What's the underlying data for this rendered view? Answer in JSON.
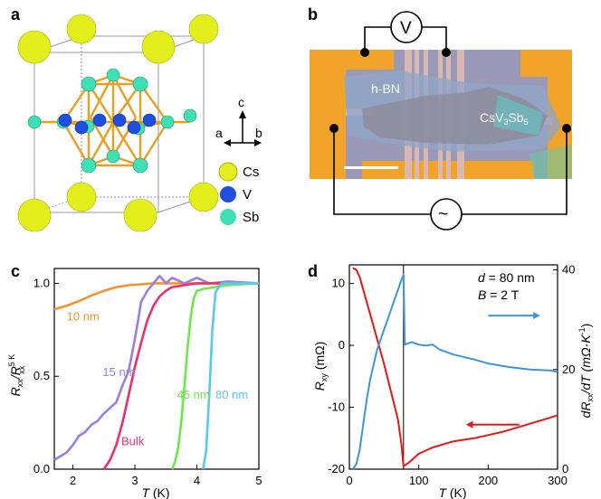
{
  "panels": {
    "a": {
      "letter": "a",
      "axes": {
        "c": "c",
        "a": "a",
        "b": "b"
      },
      "legend": [
        {
          "label": "Cs",
          "color": "#e2ef1c"
        },
        {
          "label": "V",
          "color": "#1f4fe0"
        },
        {
          "label": "Sb",
          "color": "#3fe0b3"
        }
      ],
      "bond_color": "#e8a020"
    },
    "b": {
      "letter": "b",
      "voltmeter": "V",
      "source": "~",
      "hbn_label": "h-BN",
      "flake_label": {
        "base": "CsV",
        "sub1": "3",
        "mid": "Sb",
        "sub2": "5"
      }
    },
    "c": {
      "letter": "c",
      "ylabel": {
        "R": "R",
        "xx": "xx",
        "slash": "/R",
        "sup": "5 K",
        "sub": "xx"
      },
      "xlabel": {
        "T": "T",
        "unit": " (K)"
      },
      "xticks": [
        "2",
        "3",
        "4",
        "5"
      ],
      "yticks": [
        "0.0",
        "0.5",
        "1.0"
      ],
      "labels": [
        "10 nm",
        "15 nm",
        "Bulk",
        "45 nm",
        "80 nm"
      ]
    },
    "d": {
      "letter": "d",
      "info": {
        "d_var": "d",
        "d_val": " = 80 nm",
        "b_var": "B",
        "b_val": " = 2 T"
      },
      "ylabel_left": {
        "R": "R",
        "sub": "xy",
        "unit": " (mΩ)"
      },
      "ylabel_right": {
        "pre": "dR",
        "sub": "xx",
        "post": "/dT (mΩ·K",
        "sup": "-1",
        "close": ")"
      },
      "xlabel": {
        "T": "T",
        "unit": " (K)"
      },
      "xticks": [
        "0",
        "100",
        "200",
        "300"
      ],
      "yticks_left": [
        "-20",
        "-10",
        "0",
        "10"
      ],
      "yticks_right": [
        "0",
        "20",
        "40"
      ]
    }
  },
  "chart_data": [
    {
      "type": "line",
      "panel": "c",
      "xlabel": "T (K)",
      "ylabel": "Rxx/Rxx(5 K)",
      "xlim": [
        1.7,
        5.0
      ],
      "ylim": [
        0.0,
        1.08
      ],
      "series": [
        {
          "name": "10 nm",
          "color": "#f5922a",
          "x": [
            1.7,
            1.9,
            2.1,
            2.3,
            2.5,
            2.7,
            2.9,
            3.1,
            3.3,
            3.6,
            4.0,
            4.5,
            5.0
          ],
          "y": [
            0.86,
            0.88,
            0.905,
            0.935,
            0.96,
            0.98,
            0.99,
            0.995,
            1.0,
            1.0,
            1.0,
            1.0,
            1.0
          ]
        },
        {
          "name": "15 nm",
          "color": "#9b7fe0",
          "x": [
            1.7,
            1.8,
            1.9,
            2.0,
            2.1,
            2.2,
            2.3,
            2.4,
            2.5,
            2.6,
            2.7,
            2.8,
            2.9,
            3.0,
            3.05,
            3.1,
            3.2,
            3.3,
            3.4,
            3.5,
            3.6,
            3.8,
            4.0,
            4.2,
            4.5,
            5.0
          ],
          "y": [
            0.05,
            0.07,
            0.09,
            0.13,
            0.18,
            0.2,
            0.24,
            0.26,
            0.3,
            0.33,
            0.36,
            0.45,
            0.53,
            0.7,
            0.8,
            0.9,
            0.96,
            1.0,
            1.04,
            1.0,
            1.03,
            1.0,
            1.03,
            1.0,
            1.01,
            1.0
          ]
        },
        {
          "name": "Bulk",
          "color": "#ee2f6f",
          "x": [
            2.5,
            2.6,
            2.7,
            2.8,
            2.9,
            3.0,
            3.1,
            3.2,
            3.3,
            3.4,
            3.5,
            3.6,
            3.8,
            4.0,
            5.0
          ],
          "y": [
            0.0,
            0.05,
            0.13,
            0.25,
            0.4,
            0.55,
            0.68,
            0.8,
            0.88,
            0.93,
            0.96,
            0.98,
            0.99,
            1.0,
            1.0
          ]
        },
        {
          "name": "45 nm",
          "color": "#6ee84a",
          "x": [
            3.6,
            3.65,
            3.7,
            3.75,
            3.8,
            3.85,
            3.9,
            3.95,
            4.0,
            4.1,
            4.5,
            5.0
          ],
          "y": [
            0.0,
            0.04,
            0.12,
            0.26,
            0.45,
            0.65,
            0.82,
            0.92,
            0.96,
            0.97,
            0.99,
            1.0
          ]
        },
        {
          "name": "80 nm",
          "color": "#5bc8f0",
          "x": [
            4.1,
            4.15,
            4.2,
            4.25,
            4.3,
            4.35,
            4.4,
            4.6,
            5.0
          ],
          "y": [
            0.0,
            0.1,
            0.4,
            0.75,
            0.95,
            0.98,
            1.0,
            1.0,
            1.0
          ]
        }
      ]
    },
    {
      "type": "line",
      "panel": "d",
      "xlabel": "T (K)",
      "ylabel": "Rxy (mΩ)",
      "ylabel_right": "dRxx/dT (mΩ·K^-1)",
      "xlim": [
        0,
        300
      ],
      "ylim": [
        -20,
        13
      ],
      "ylim_right": [
        0,
        41
      ],
      "annotation_line_x": 78,
      "series": [
        {
          "name": "Rxy",
          "color": "#e81818",
          "axis": "left",
          "x": [
            5,
            10,
            15,
            20,
            30,
            40,
            50,
            60,
            70,
            75,
            78,
            85,
            100,
            120,
            150,
            180,
            200,
            220,
            250,
            280,
            300
          ],
          "y": [
            12.5,
            12.2,
            11,
            9,
            5,
            1,
            -3,
            -7.5,
            -12,
            -16,
            -19.5,
            -19,
            -17.5,
            -16.5,
            -15.5,
            -15,
            -14.5,
            -14,
            -13,
            -12,
            -11.3
          ]
        },
        {
          "name": "dRxx/dT",
          "color": "#3d96dd",
          "axis": "right",
          "x": [
            5,
            10,
            15,
            20,
            25,
            30,
            40,
            50,
            60,
            70,
            75,
            78,
            80,
            90,
            100,
            110,
            120,
            130,
            150,
            180,
            200,
            230,
            260,
            290,
            300
          ],
          "y": [
            0,
            1,
            4,
            9,
            14,
            18,
            24,
            28,
            32,
            36,
            38,
            39,
            25,
            25.5,
            25,
            24.8,
            25,
            24,
            23,
            22,
            21.2,
            20.5,
            20,
            19.8,
            19.5
          ]
        }
      ],
      "arrows": [
        {
          "direction": "right",
          "color": "#3d96dd"
        },
        {
          "direction": "left",
          "color": "#e81818"
        }
      ]
    }
  ]
}
